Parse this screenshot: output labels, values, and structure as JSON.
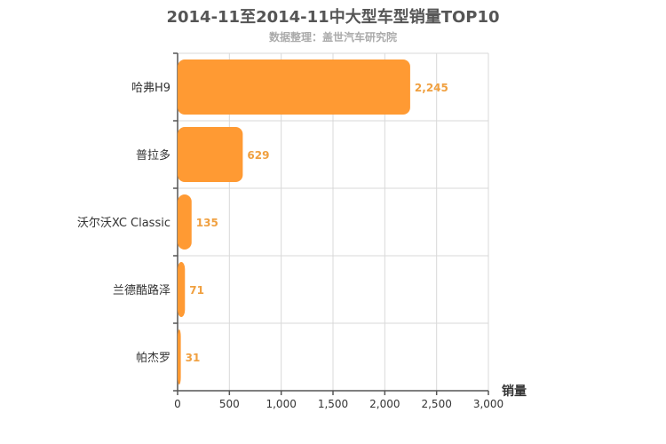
{
  "title": "2014-11至2014-11中大型车型销量TOP10",
  "subtitle": "数据整理：盖世汽车研究院",
  "colors": {
    "bar": "#ff9a33",
    "label": "#f0a040",
    "grid": "#d9d9d9",
    "axis": "#555555",
    "text": "#333333"
  },
  "chart_data": {
    "type": "bar",
    "orientation": "horizontal",
    "categories": [
      "哈弗H9",
      "普拉多",
      "沃尔沃XC Classic",
      "兰德酷路泽",
      "帕杰罗"
    ],
    "values": [
      2245,
      629,
      135,
      71,
      31
    ],
    "value_labels": [
      "2,245",
      "629",
      "135",
      "71",
      "31"
    ],
    "xlabel": "销量",
    "xlim": [
      0,
      3000
    ],
    "xticks": [
      0,
      500,
      1000,
      1500,
      2000,
      2500,
      3000
    ],
    "xtick_labels": [
      "0",
      "500",
      "1,000",
      "1,500",
      "2,000",
      "2,500",
      "3,000"
    ],
    "grid": true
  }
}
